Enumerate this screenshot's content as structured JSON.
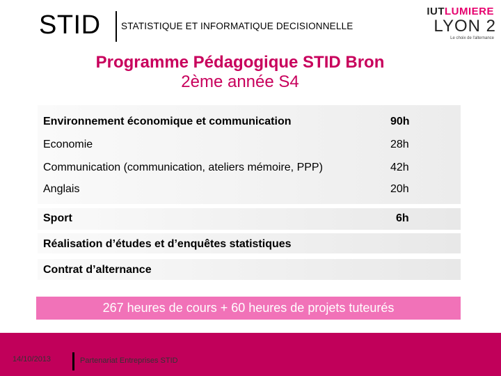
{
  "header": {
    "logo_text": "STID",
    "subtitle": "STATISTIQUE ET INFORMATIQUE DECISIONNELLE",
    "iut_logo": {
      "line1_a": "IUT",
      "line1_b": "LUMIERE",
      "line2": "LYON 2",
      "tagline": "Le choix de l'alternance"
    }
  },
  "title": {
    "line1": "Programme Pédagogique STID Bron",
    "line2": "2ème année S4"
  },
  "block": {
    "rows": [
      {
        "label": "Environnement économique et communication",
        "hours": "90h"
      },
      {
        "label": "Economie",
        "hours": "28h"
      },
      {
        "label": "Communication (communication, ateliers mémoire, PPP)",
        "hours": "42h"
      },
      {
        "label": "Anglais",
        "hours": "20h"
      }
    ]
  },
  "sport": {
    "label": "Sport",
    "hours": "6h"
  },
  "etudes": {
    "label": "Réalisation d’études et d’enquêtes statistiques"
  },
  "alternance": {
    "label": "Contrat d’alternance"
  },
  "summary": "267 heures de cours + 60 heures de projets tuteurés",
  "footer": {
    "date": "14/10/2013",
    "text": "Partenariat Entreprises STID"
  },
  "colors": {
    "title_magenta": "#c8005c",
    "summary_pink": "#f172b8",
    "footer_magenta": "#c1005a"
  }
}
